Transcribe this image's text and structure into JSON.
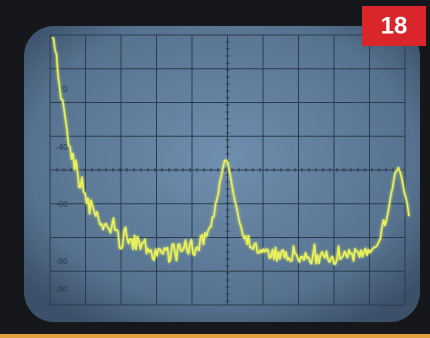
{
  "badge": "18",
  "screen": {
    "scale_labels": [
      "-20",
      "-40",
      "-60",
      "-80",
      "-90"
    ]
  }
}
